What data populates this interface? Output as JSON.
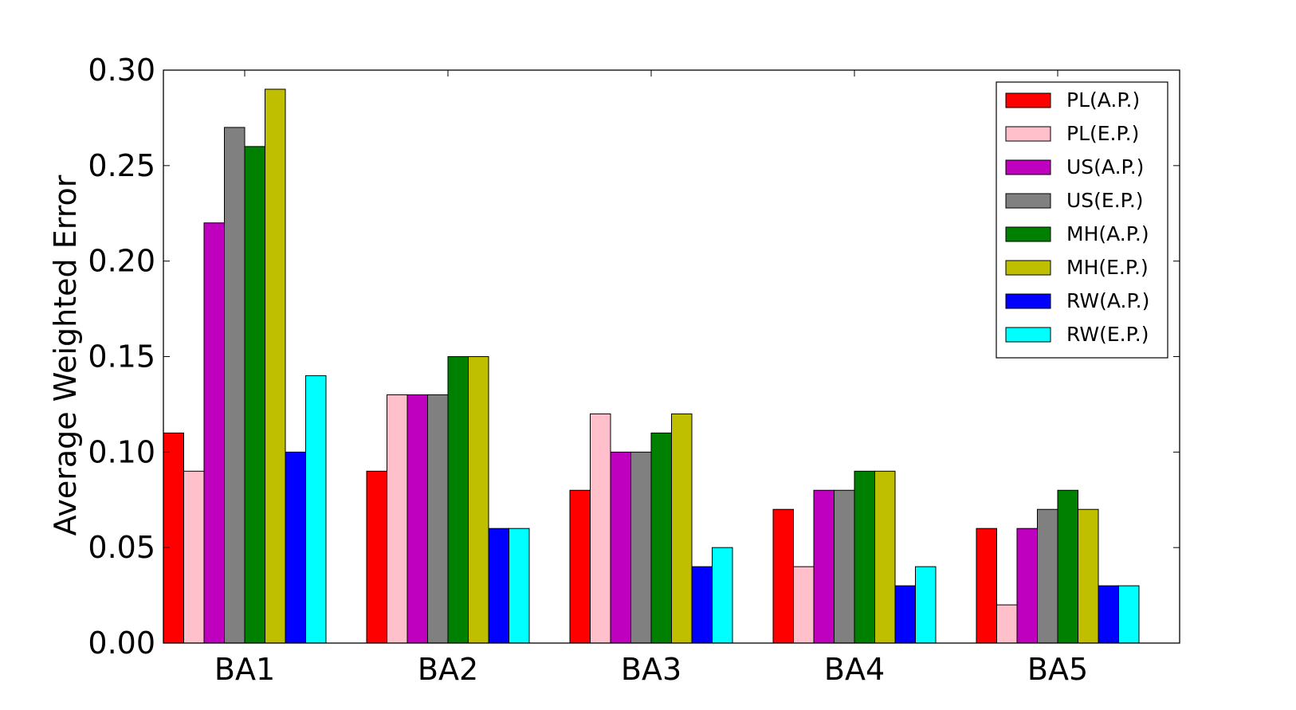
{
  "chart_data": {
    "type": "bar",
    "title": "",
    "xlabel": "",
    "ylabel": "Average Weighted Error",
    "ylim": [
      0,
      0.3
    ],
    "yticks": [
      "0.00",
      "0.05",
      "0.10",
      "0.15",
      "0.20",
      "0.25",
      "0.30"
    ],
    "categories": [
      "BA1",
      "BA2",
      "BA3",
      "BA4",
      "BA5"
    ],
    "legend_position": "top-right",
    "grid": false,
    "series": [
      {
        "name": "PL(A.P.)",
        "color": "#ff0000",
        "values": [
          0.11,
          0.09,
          0.08,
          0.07,
          0.06
        ]
      },
      {
        "name": "PL(E.P.)",
        "color": "#ffc0cb",
        "values": [
          0.09,
          0.13,
          0.12,
          0.04,
          0.02
        ]
      },
      {
        "name": "US(A.P.)",
        "color": "#bf00bf",
        "values": [
          0.22,
          0.13,
          0.1,
          0.08,
          0.06
        ]
      },
      {
        "name": "US(E.P.)",
        "color": "#808080",
        "values": [
          0.27,
          0.13,
          0.1,
          0.08,
          0.07
        ]
      },
      {
        "name": "MH(A.P.)",
        "color": "#008000",
        "values": [
          0.26,
          0.15,
          0.11,
          0.09,
          0.08
        ]
      },
      {
        "name": "MH(E.P.)",
        "color": "#bfbf00",
        "values": [
          0.29,
          0.15,
          0.12,
          0.09,
          0.07
        ]
      },
      {
        "name": "RW(A.P.)",
        "color": "#0000ff",
        "values": [
          0.1,
          0.06,
          0.04,
          0.03,
          0.03
        ]
      },
      {
        "name": "RW(E.P.)",
        "color": "#00ffff",
        "values": [
          0.14,
          0.06,
          0.05,
          0.04,
          0.03
        ]
      }
    ]
  }
}
